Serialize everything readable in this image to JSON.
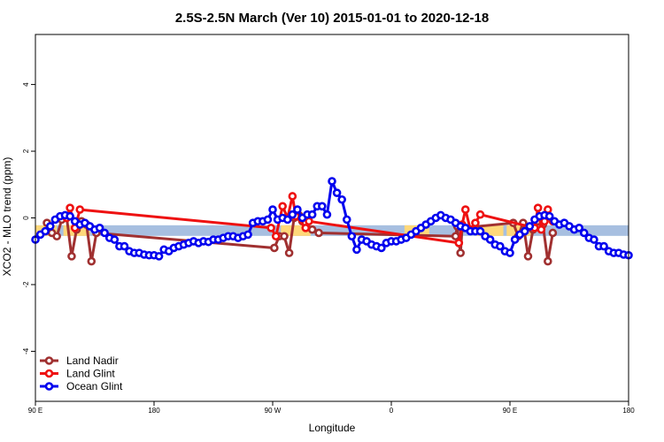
{
  "chart_data": {
    "type": "line",
    "title": "2.5S-2.5N March (Ver 10)   2015-01-01 to 2020-12-18",
    "xlabel": "Longitude",
    "ylabel": "XCO2 - MLO trend (ppm)",
    "xlim": [
      -90,
      270
    ],
    "ylim": [
      -5.5,
      5.5
    ],
    "xticks": [
      {
        "value": -90,
        "label": "90 E"
      },
      {
        "value": -18,
        "label": "180"
      },
      {
        "value": 54,
        "label": "90 W"
      },
      {
        "value": 126,
        "label": "0"
      },
      {
        "value": 198,
        "label": "90 E"
      },
      {
        "value": 270,
        "label": "180"
      }
    ],
    "yticks": [
      {
        "value": -4,
        "label": "-4"
      },
      {
        "value": -2,
        "label": "-2"
      },
      {
        "value": 0,
        "label": "0"
      },
      {
        "value": 2,
        "label": "2"
      },
      {
        "value": 4,
        "label": "4"
      }
    ],
    "grid": false,
    "legend_position": "bottom-left",
    "reference_band": {
      "y_center": -0.38,
      "color": "#a7bfe0",
      "land_color": "#ffd87a",
      "land_segments": [
        [
          -90,
          -77
        ],
        [
          -73,
          -57
        ],
        [
          59,
          77
        ],
        [
          134,
          149
        ],
        [
          178,
          194
        ],
        [
          196,
          212
        ]
      ]
    },
    "series": [
      {
        "name": "Land Nadir",
        "color": "#a03030",
        "x": [
          -83,
          -80,
          -77,
          -74,
          -71,
          -68,
          -65,
          -62,
          -59,
          -56,
          -53,
          55,
          58,
          61,
          64,
          67,
          70,
          72,
          74,
          78,
          82,
          165,
          166,
          167,
          168,
          169,
          200,
          203,
          206,
          209,
          212,
          215,
          218,
          221,
          224
        ],
        "y": [
          -0.15,
          -0.45,
          -0.55,
          -0.05,
          0.0,
          -1.15,
          -0.35,
          -0.1,
          -0.2,
          -1.3,
          -0.45,
          -0.9,
          -0.55,
          -0.55,
          -1.05,
          0.0,
          0.08,
          -0.1,
          -0.15,
          -0.35,
          -0.45,
          -0.55,
          -0.25,
          -0.75,
          -1.05,
          -0.3,
          -0.15,
          -0.55,
          -0.15,
          -1.15,
          -0.35,
          -0.1,
          -0.2,
          -1.3,
          -0.45
        ]
      },
      {
        "name": "Land Glint",
        "color": "#ee1111",
        "x": [
          -71,
          -69,
          -66,
          -63,
          53,
          56,
          60,
          63,
          66,
          68,
          74,
          76,
          167,
          169,
          171,
          174,
          177,
          180,
          213,
          215,
          217,
          219,
          221,
          224
        ],
        "y": [
          0.0,
          0.3,
          -0.3,
          0.25,
          -0.3,
          -0.55,
          0.35,
          0.0,
          0.65,
          0.05,
          -0.3,
          -0.1,
          -0.75,
          -0.2,
          0.25,
          -0.35,
          -0.15,
          0.1,
          -0.3,
          0.3,
          -0.35,
          -0.1,
          0.25,
          -0.1
        ]
      },
      {
        "name": "Ocean Glint",
        "color": "#0000ee",
        "x": [
          -90,
          -87,
          -84,
          -81,
          -78,
          -75,
          -72,
          -69,
          -66,
          -63,
          -60,
          -57,
          -54,
          -51,
          -48,
          -45,
          -42,
          -39,
          -36,
          -33,
          -30,
          -27,
          -24,
          -21,
          -18,
          -15,
          -12,
          -9,
          -6,
          -3,
          0,
          3,
          6,
          9,
          12,
          15,
          18,
          21,
          24,
          27,
          30,
          33,
          36,
          39,
          42,
          45,
          48,
          51,
          54,
          57,
          60,
          63,
          66,
          69,
          72,
          75,
          78,
          81,
          84,
          87,
          90,
          93,
          96,
          99,
          102,
          105,
          108,
          111,
          114,
          117,
          120,
          123,
          126,
          129,
          132,
          135,
          138,
          141,
          144,
          147,
          150,
          153,
          156,
          159,
          162,
          165,
          168,
          171,
          174,
          177,
          180,
          183,
          186,
          189,
          192,
          195,
          198,
          201,
          204,
          207,
          210,
          213,
          216,
          219,
          222,
          225,
          228,
          231,
          234,
          237,
          240,
          243,
          246,
          249,
          252,
          255,
          258,
          261,
          264,
          267,
          270
        ],
        "y": [
          -0.65,
          -0.5,
          -0.4,
          -0.25,
          -0.05,
          0.05,
          0.08,
          0.05,
          -0.1,
          -0.2,
          -0.15,
          -0.25,
          -0.35,
          -0.3,
          -0.45,
          -0.6,
          -0.65,
          -0.85,
          -0.85,
          -1.0,
          -1.05,
          -1.05,
          -1.1,
          -1.12,
          -1.12,
          -1.15,
          -0.95,
          -1.0,
          -0.9,
          -0.85,
          -0.8,
          -0.75,
          -0.7,
          -0.75,
          -0.7,
          -0.72,
          -0.65,
          -0.65,
          -0.6,
          -0.55,
          -0.55,
          -0.6,
          -0.55,
          -0.5,
          -0.15,
          -0.1,
          -0.1,
          -0.05,
          0.25,
          -0.05,
          0.0,
          -0.05,
          0.1,
          0.25,
          0.0,
          0.1,
          0.1,
          0.35,
          0.35,
          0.1,
          1.1,
          0.75,
          0.55,
          -0.05,
          -0.55,
          -0.95,
          -0.65,
          -0.7,
          -0.8,
          -0.85,
          -0.9,
          -0.75,
          -0.7,
          -0.7,
          -0.65,
          -0.6,
          -0.5,
          -0.4,
          -0.3,
          -0.2,
          -0.1,
          0.0,
          0.08,
          0.0,
          -0.05,
          -0.15,
          -0.25,
          -0.3,
          -0.4,
          -0.4,
          -0.4,
          -0.55,
          -0.65,
          -0.8,
          -0.85,
          -1.0,
          -1.05,
          -0.65,
          -0.5,
          -0.4,
          -0.25,
          -0.05,
          0.05,
          0.08,
          0.05,
          -0.1,
          -0.2,
          -0.15,
          -0.25,
          -0.35,
          -0.3,
          -0.45,
          -0.6,
          -0.65,
          -0.85,
          -0.85,
          -1.0,
          -1.05,
          -1.05,
          -1.1,
          -1.12
        ]
      }
    ]
  }
}
